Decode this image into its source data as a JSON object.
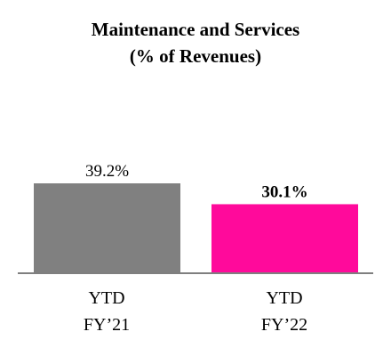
{
  "chart_data": {
    "type": "bar",
    "title": "Maintenance and Services",
    "subtitle": "(% of Revenues)",
    "categories": [
      [
        "YTD",
        "FY’21"
      ],
      [
        "YTD",
        "FY’22"
      ]
    ],
    "values": [
      39.2,
      30.1
    ],
    "data_labels": [
      "39.2%",
      "30.1%"
    ],
    "data_label_bold": [
      false,
      true
    ],
    "bar_colors": [
      "#808080",
      "#ff0a9b"
    ],
    "xlabel": "",
    "ylabel": "",
    "ylim": [
      0,
      39.2
    ],
    "grid": false,
    "legend": "none",
    "axis_color": "#7f7f7f"
  }
}
